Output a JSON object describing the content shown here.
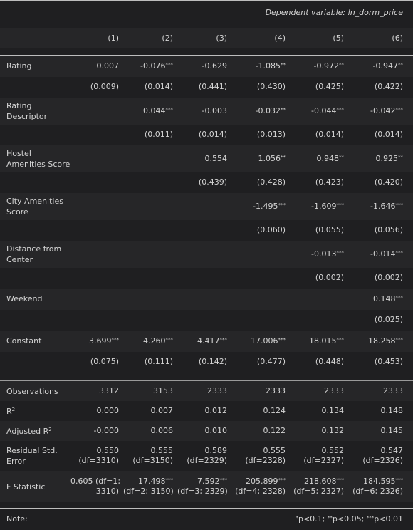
{
  "header": {
    "dep_var": "Dependent variable: ln_dorm_price"
  },
  "columns": [
    "(1)",
    "(2)",
    "(3)",
    "(4)",
    "(5)",
    "(6)"
  ],
  "rows": [
    {
      "label": "Rating",
      "coef": [
        [
          "0.007",
          ""
        ],
        [
          "-0.076",
          "***"
        ],
        [
          "-0.629",
          ""
        ],
        [
          "-1.085",
          "**"
        ],
        [
          "-0.972",
          "**"
        ],
        [
          "-0.947",
          "**"
        ]
      ],
      "se": [
        "(0.009)",
        "(0.014)",
        "(0.441)",
        "(0.430)",
        "(0.425)",
        "(0.422)"
      ]
    },
    {
      "label": "Rating Descriptor",
      "coef": [
        [
          "",
          ""
        ],
        [
          "0.044",
          "***"
        ],
        [
          "-0.003",
          ""
        ],
        [
          "-0.032",
          "**"
        ],
        [
          "-0.044",
          "***"
        ],
        [
          "-0.042",
          "***"
        ]
      ],
      "se": [
        "",
        "(0.011)",
        "(0.014)",
        "(0.013)",
        "(0.014)",
        "(0.014)"
      ]
    },
    {
      "label": "Hostel Amenities Score",
      "coef": [
        [
          "",
          ""
        ],
        [
          "",
          ""
        ],
        [
          "0.554",
          ""
        ],
        [
          "1.056",
          "**"
        ],
        [
          "0.948",
          "**"
        ],
        [
          "0.925",
          "**"
        ]
      ],
      "se": [
        "",
        "",
        "(0.439)",
        "(0.428)",
        "(0.423)",
        "(0.420)"
      ]
    },
    {
      "label": "City Amenities Score",
      "coef": [
        [
          "",
          ""
        ],
        [
          "",
          ""
        ],
        [
          "",
          ""
        ],
        [
          "-1.495",
          "***"
        ],
        [
          "-1.609",
          "***"
        ],
        [
          "-1.646",
          "***"
        ]
      ],
      "se": [
        "",
        "",
        "",
        "(0.060)",
        "(0.055)",
        "(0.056)"
      ]
    },
    {
      "label": "Distance from Center",
      "coef": [
        [
          "",
          ""
        ],
        [
          "",
          ""
        ],
        [
          "",
          ""
        ],
        [
          "",
          ""
        ],
        [
          "-0.013",
          "***"
        ],
        [
          "-0.014",
          "***"
        ]
      ],
      "se": [
        "",
        "",
        "",
        "",
        "(0.002)",
        "(0.002)"
      ]
    },
    {
      "label": "Weekend",
      "coef": [
        [
          "",
          ""
        ],
        [
          "",
          ""
        ],
        [
          "",
          ""
        ],
        [
          "",
          ""
        ],
        [
          "",
          ""
        ],
        [
          "0.148",
          "***"
        ]
      ],
      "se": [
        "",
        "",
        "",
        "",
        "",
        "(0.025)"
      ]
    },
    {
      "label": "Constant",
      "coef": [
        [
          "3.699",
          "***"
        ],
        [
          "4.260",
          "***"
        ],
        [
          "4.417",
          "***"
        ],
        [
          "17.006",
          "***"
        ],
        [
          "18.015",
          "***"
        ],
        [
          "18.258",
          "***"
        ]
      ],
      "se": [
        "(0.075)",
        "(0.111)",
        "(0.142)",
        "(0.477)",
        "(0.448)",
        "(0.453)"
      ]
    }
  ],
  "stats": {
    "observations": {
      "label": "Observations",
      "values": [
        "3312",
        "3153",
        "2333",
        "2333",
        "2333",
        "2333"
      ]
    },
    "r2": {
      "label": "R",
      "sup": "2",
      "values": [
        "0.000",
        "0.007",
        "0.012",
        "0.124",
        "0.134",
        "0.148"
      ]
    },
    "adj_r2": {
      "label": "Adjusted R",
      "sup": "2",
      "values": [
        "-0.000",
        "0.006",
        "0.010",
        "0.122",
        "0.132",
        "0.145"
      ]
    },
    "rse": {
      "label": "Residual Std. Error",
      "values": [
        [
          "0.550",
          "(df=3310)"
        ],
        [
          "0.555",
          "(df=3150)"
        ],
        [
          "0.589",
          "(df=2329)"
        ],
        [
          "0.555",
          "(df=2328)"
        ],
        [
          "0.552",
          "(df=2327)"
        ],
        [
          "0.547",
          "(df=2326)"
        ]
      ]
    },
    "fstat": {
      "label": "F Statistic",
      "values": [
        [
          "0.605 (df=1;",
          "",
          "3310)"
        ],
        [
          "17.498",
          "***",
          "(df=2; 3150)"
        ],
        [
          "7.592",
          "***",
          "(df=3; 2329)"
        ],
        [
          "205.899",
          "***",
          "(df=4; 2328)"
        ],
        [
          "218.608",
          "***",
          "(df=5; 2327)"
        ],
        [
          "184.595",
          "***",
          "(df=6; 2326)"
        ]
      ]
    }
  },
  "note": {
    "label": "Note:",
    "parts": [
      {
        "sup": "*",
        "text": "p<0.1; "
      },
      {
        "sup": "**",
        "text": "p<0.05; "
      },
      {
        "sup": "***",
        "text": "p<0.01"
      }
    ]
  }
}
